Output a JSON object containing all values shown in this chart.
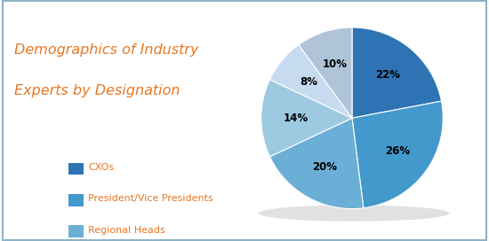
{
  "title_line1": "Demographics of Industry",
  "title_line2": "Experts by Designation",
  "title_color": "#E87722",
  "title_fontsize": 11.5,
  "slices": [
    22,
    26,
    20,
    14,
    8,
    10
  ],
  "labels": [
    "22%",
    "26%",
    "20%",
    "14%",
    "8%",
    "10%"
  ],
  "colors": [
    "#2E74B5",
    "#4499CC",
    "#6BAED6",
    "#9ECAE1",
    "#C6DBEF",
    "#B0C4D8"
  ],
  "start_angle": 90,
  "legend_labels": [
    "CXOs",
    "President/Vice Presidents",
    "Regional Heads"
  ],
  "legend_colors": [
    "#2E74B5",
    "#4499CC",
    "#6BAED6"
  ],
  "legend_fontsize": 8,
  "legend_color": "#E87722",
  "pct_fontsize": 8.5,
  "background_color": "#FFFFFF",
  "border_color": "#8DB4C8"
}
